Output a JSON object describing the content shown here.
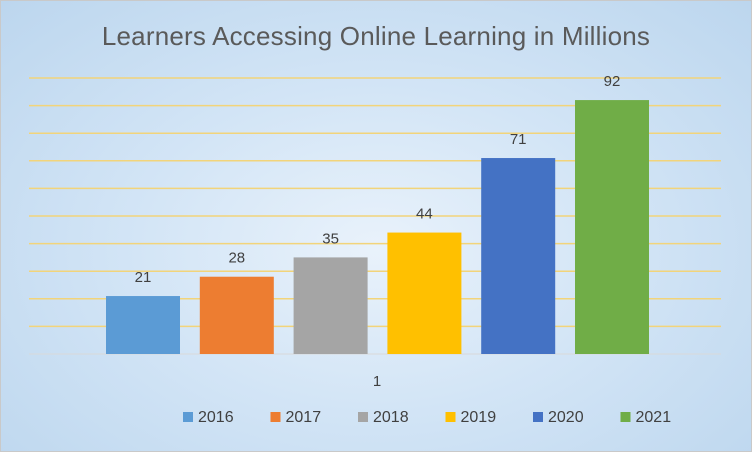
{
  "chart_data": {
    "type": "bar",
    "title": "Learners Accessing Online Learning in Millions",
    "categories": [
      "1"
    ],
    "series": [
      {
        "name": "2016",
        "values": [
          21
        ],
        "color": "#5B9BD5"
      },
      {
        "name": "2017",
        "values": [
          28
        ],
        "color": "#ED7D31"
      },
      {
        "name": "2018",
        "values": [
          35
        ],
        "color": "#A5A5A5"
      },
      {
        "name": "2019",
        "values": [
          44
        ],
        "color": "#FFC000"
      },
      {
        "name": "2020",
        "values": [
          71
        ],
        "color": "#4472C4"
      },
      {
        "name": "2021",
        "values": [
          92
        ],
        "color": "#70AD47"
      }
    ],
    "ylim": [
      0,
      100
    ],
    "gridlines": true,
    "gridline_color": "#F2D47A",
    "data_labels": true,
    "legend_position": "bottom",
    "xlabel": "",
    "ylabel": ""
  }
}
